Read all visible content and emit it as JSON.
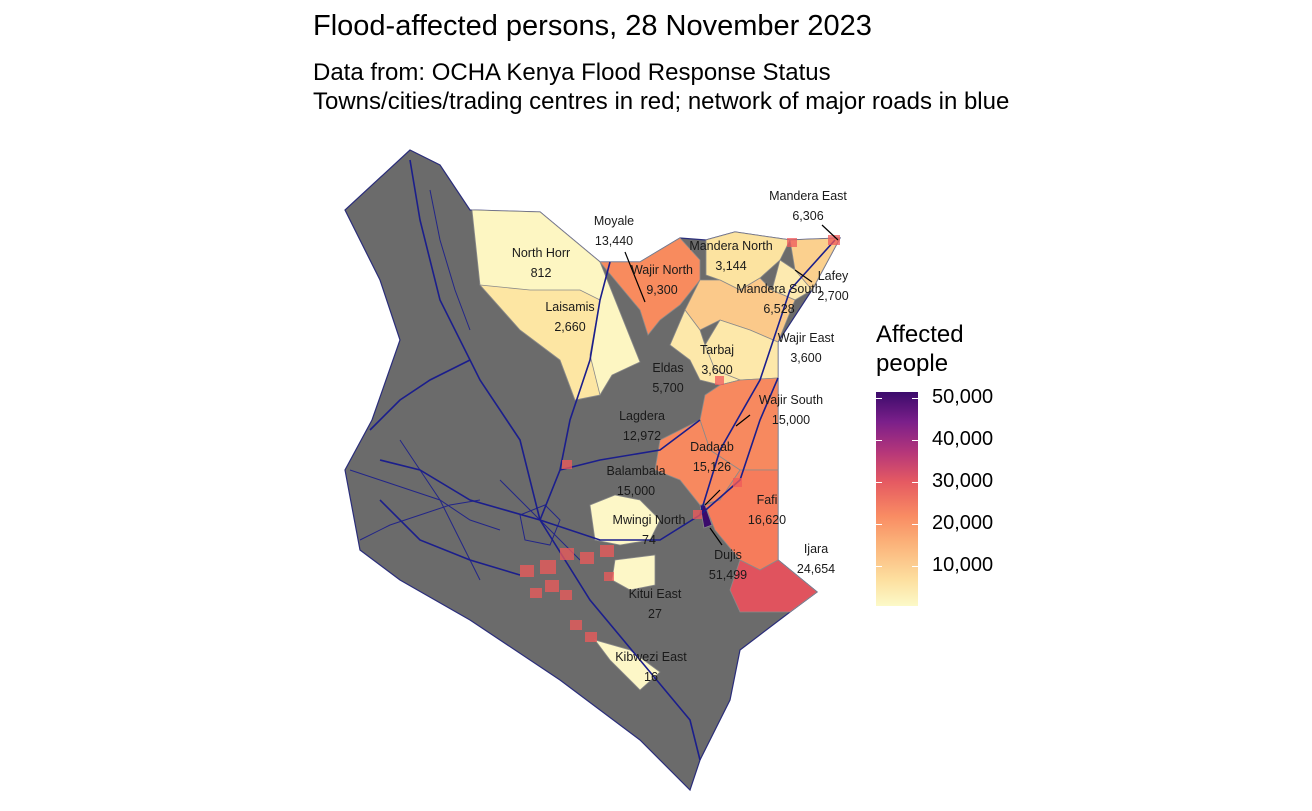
{
  "title": "Flood-affected persons, 28 November 2023",
  "subtitle_line1": "Data from: OCHA Kenya Flood Response Status",
  "subtitle_line2": "Towns/cities/trading centres in red; network of major roads in blue",
  "legend": {
    "title_line1": "Affected",
    "title_line2": "people",
    "labels": [
      "50,000",
      "40,000",
      "30,000",
      "20,000",
      "10,000"
    ]
  },
  "colors": {
    "land": "#6b6b6b",
    "roads": "#1b1e8c",
    "towns": "#f05a5a",
    "ramp_low": "#fcf9c8",
    "ramp_high": "#3b0b6b"
  },
  "subcounties": [
    {
      "name": "North Horr",
      "value": "812",
      "affected": 812
    },
    {
      "name": "Laisamis",
      "value": "2,660",
      "affected": 2660
    },
    {
      "name": "Moyale",
      "value": "13,440",
      "affected": 13440
    },
    {
      "name": "Wajir North",
      "value": "9,300",
      "affected": 9300
    },
    {
      "name": "Mandera North",
      "value": "3,144",
      "affected": 3144
    },
    {
      "name": "Mandera East",
      "value": "6,306",
      "affected": 6306
    },
    {
      "name": "Lafey",
      "value": "2,700",
      "affected": 2700
    },
    {
      "name": "Mandera South",
      "value": "6,528",
      "affected": 6528
    },
    {
      "name": "Wajir East",
      "value": "3,600",
      "affected": 3600
    },
    {
      "name": "Tarbaj",
      "value": "3,600",
      "affected": 3600
    },
    {
      "name": "Eldas",
      "value": "5,700",
      "affected": 5700
    },
    {
      "name": "Wajir South",
      "value": "15,000",
      "affected": 15000
    },
    {
      "name": "Lagdera",
      "value": "12,972",
      "affected": 12972
    },
    {
      "name": "Dadaab",
      "value": "15,126",
      "affected": 15126
    },
    {
      "name": "Balambala",
      "value": "15,000",
      "affected": 15000
    },
    {
      "name": "Fafi",
      "value": "16,620",
      "affected": 16620
    },
    {
      "name": "Mwingi North",
      "value": "74",
      "affected": 74
    },
    {
      "name": "Dujis",
      "value": "51,499",
      "affected": 51499
    },
    {
      "name": "Ijara",
      "value": "24,654",
      "affected": 24654
    },
    {
      "name": "Kitui East",
      "value": "27",
      "affected": 27
    },
    {
      "name": "Kibwezi East",
      "value": "16",
      "affected": 16
    }
  ]
}
